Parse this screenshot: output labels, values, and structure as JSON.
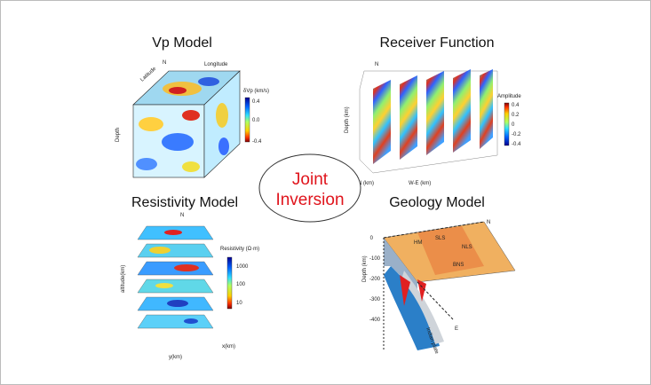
{
  "center": {
    "lines": [
      "Joint",
      "Inversion"
    ]
  },
  "panels": [
    {
      "title": "Vp Model",
      "axis_label": "Depth",
      "colorbar_label": "δVp (km/s)",
      "colorbar_ticks": [
        "0.4",
        "0.0",
        "-0.4"
      ],
      "labels": [
        "Latitude",
        "Longitude",
        "N"
      ]
    },
    {
      "title": "Receiver Function",
      "axis_label": "Depth (km)",
      "colorbar_label": "Amplitude",
      "colorbar_ticks": [
        "0.4",
        "0.2",
        "0",
        "-0.2",
        "-0.4"
      ],
      "labels": [
        "N",
        "S-N (km)",
        "W-E (km)"
      ]
    },
    {
      "title": "Resistivity Model",
      "axis_label": "altitude(km)",
      "colorbar_label": "Resistivity (Ω·m)",
      "colorbar_ticks": [
        "1000",
        "100",
        "10"
      ],
      "labels": [
        "N",
        "x(km)",
        "y(km)"
      ]
    },
    {
      "title": "Geology Model",
      "axis_label": "Depth (km)",
      "depth_ticks": [
        "0",
        "-100",
        "-200",
        "-300",
        "-400"
      ],
      "labels": [
        "N",
        "E",
        "NLS",
        "SLS",
        "HM",
        "Indian plate",
        "BNS"
      ]
    }
  ]
}
